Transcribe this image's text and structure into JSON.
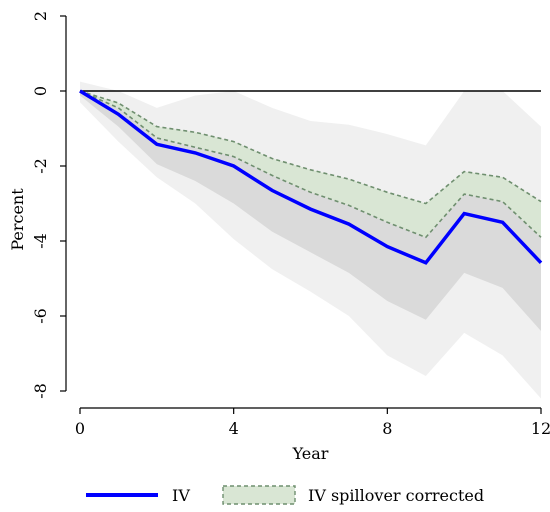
{
  "chart_data": {
    "type": "line",
    "title": "",
    "xlabel": "Year",
    "ylabel": "Percent",
    "xlim": [
      0,
      12
    ],
    "ylim": [
      -8,
      2
    ],
    "xticks": [
      0,
      4,
      8,
      12
    ],
    "yticks": [
      2,
      0,
      -2,
      -4,
      -6,
      -8
    ],
    "x_tick_labels": [
      "0",
      "4",
      "8",
      "12"
    ],
    "y_tick_labels": [
      "2",
      "0",
      "-2",
      "-4",
      "-6",
      "-8"
    ],
    "grid": false,
    "legend_position": "bottom",
    "colors": {
      "iv_line": "#0000ff",
      "zero_line": "#000000",
      "outer_band": "#f0f0f0",
      "inner_band": "#dadada",
      "corrected_band_fill": "#d9e6d4",
      "corrected_band_border": "#6f8f6f"
    },
    "x": [
      0,
      1,
      2,
      3,
      4,
      5,
      6,
      7,
      8,
      9,
      10,
      11,
      12
    ],
    "series": [
      {
        "name": "IV",
        "style": "solid-line",
        "values": [
          0,
          -0.62,
          -1.42,
          -1.65,
          -2.0,
          -2.65,
          -3.15,
          -3.55,
          -4.15,
          -4.58,
          -3.27,
          -3.5,
          -4.58
        ],
        "bands": [
          {
            "level": "outer",
            "lower": [
              -0.3,
              -1.35,
              -2.3,
              -3.0,
              -3.95,
              -4.75,
              -5.35,
              -6.0,
              -7.05,
              -7.6,
              -6.45,
              -7.05,
              -8.2
            ],
            "upper": [
              0.25,
              0.0,
              -0.45,
              -0.12,
              0.0,
              -0.45,
              -0.8,
              -0.9,
              -1.15,
              -1.45,
              0.0,
              0.0,
              -0.95
            ]
          },
          {
            "level": "inner",
            "lower": [
              -0.12,
              -0.95,
              -1.95,
              -2.4,
              -3.0,
              -3.75,
              -4.3,
              -4.85,
              -5.6,
              -6.1,
              -4.85,
              -5.25,
              -6.4
            ]
          }
        ]
      },
      {
        "name": "IV spillover corrected",
        "style": "dashed-band",
        "upper": [
          0,
          -0.32,
          -0.95,
          -1.1,
          -1.35,
          -1.8,
          -2.1,
          -2.35,
          -2.7,
          -3.0,
          -2.15,
          -2.3,
          -2.95
        ],
        "lower": [
          0,
          -0.45,
          -1.25,
          -1.5,
          -1.75,
          -2.25,
          -2.7,
          -3.05,
          -3.5,
          -3.9,
          -2.75,
          -2.95,
          -3.9
        ]
      }
    ]
  }
}
